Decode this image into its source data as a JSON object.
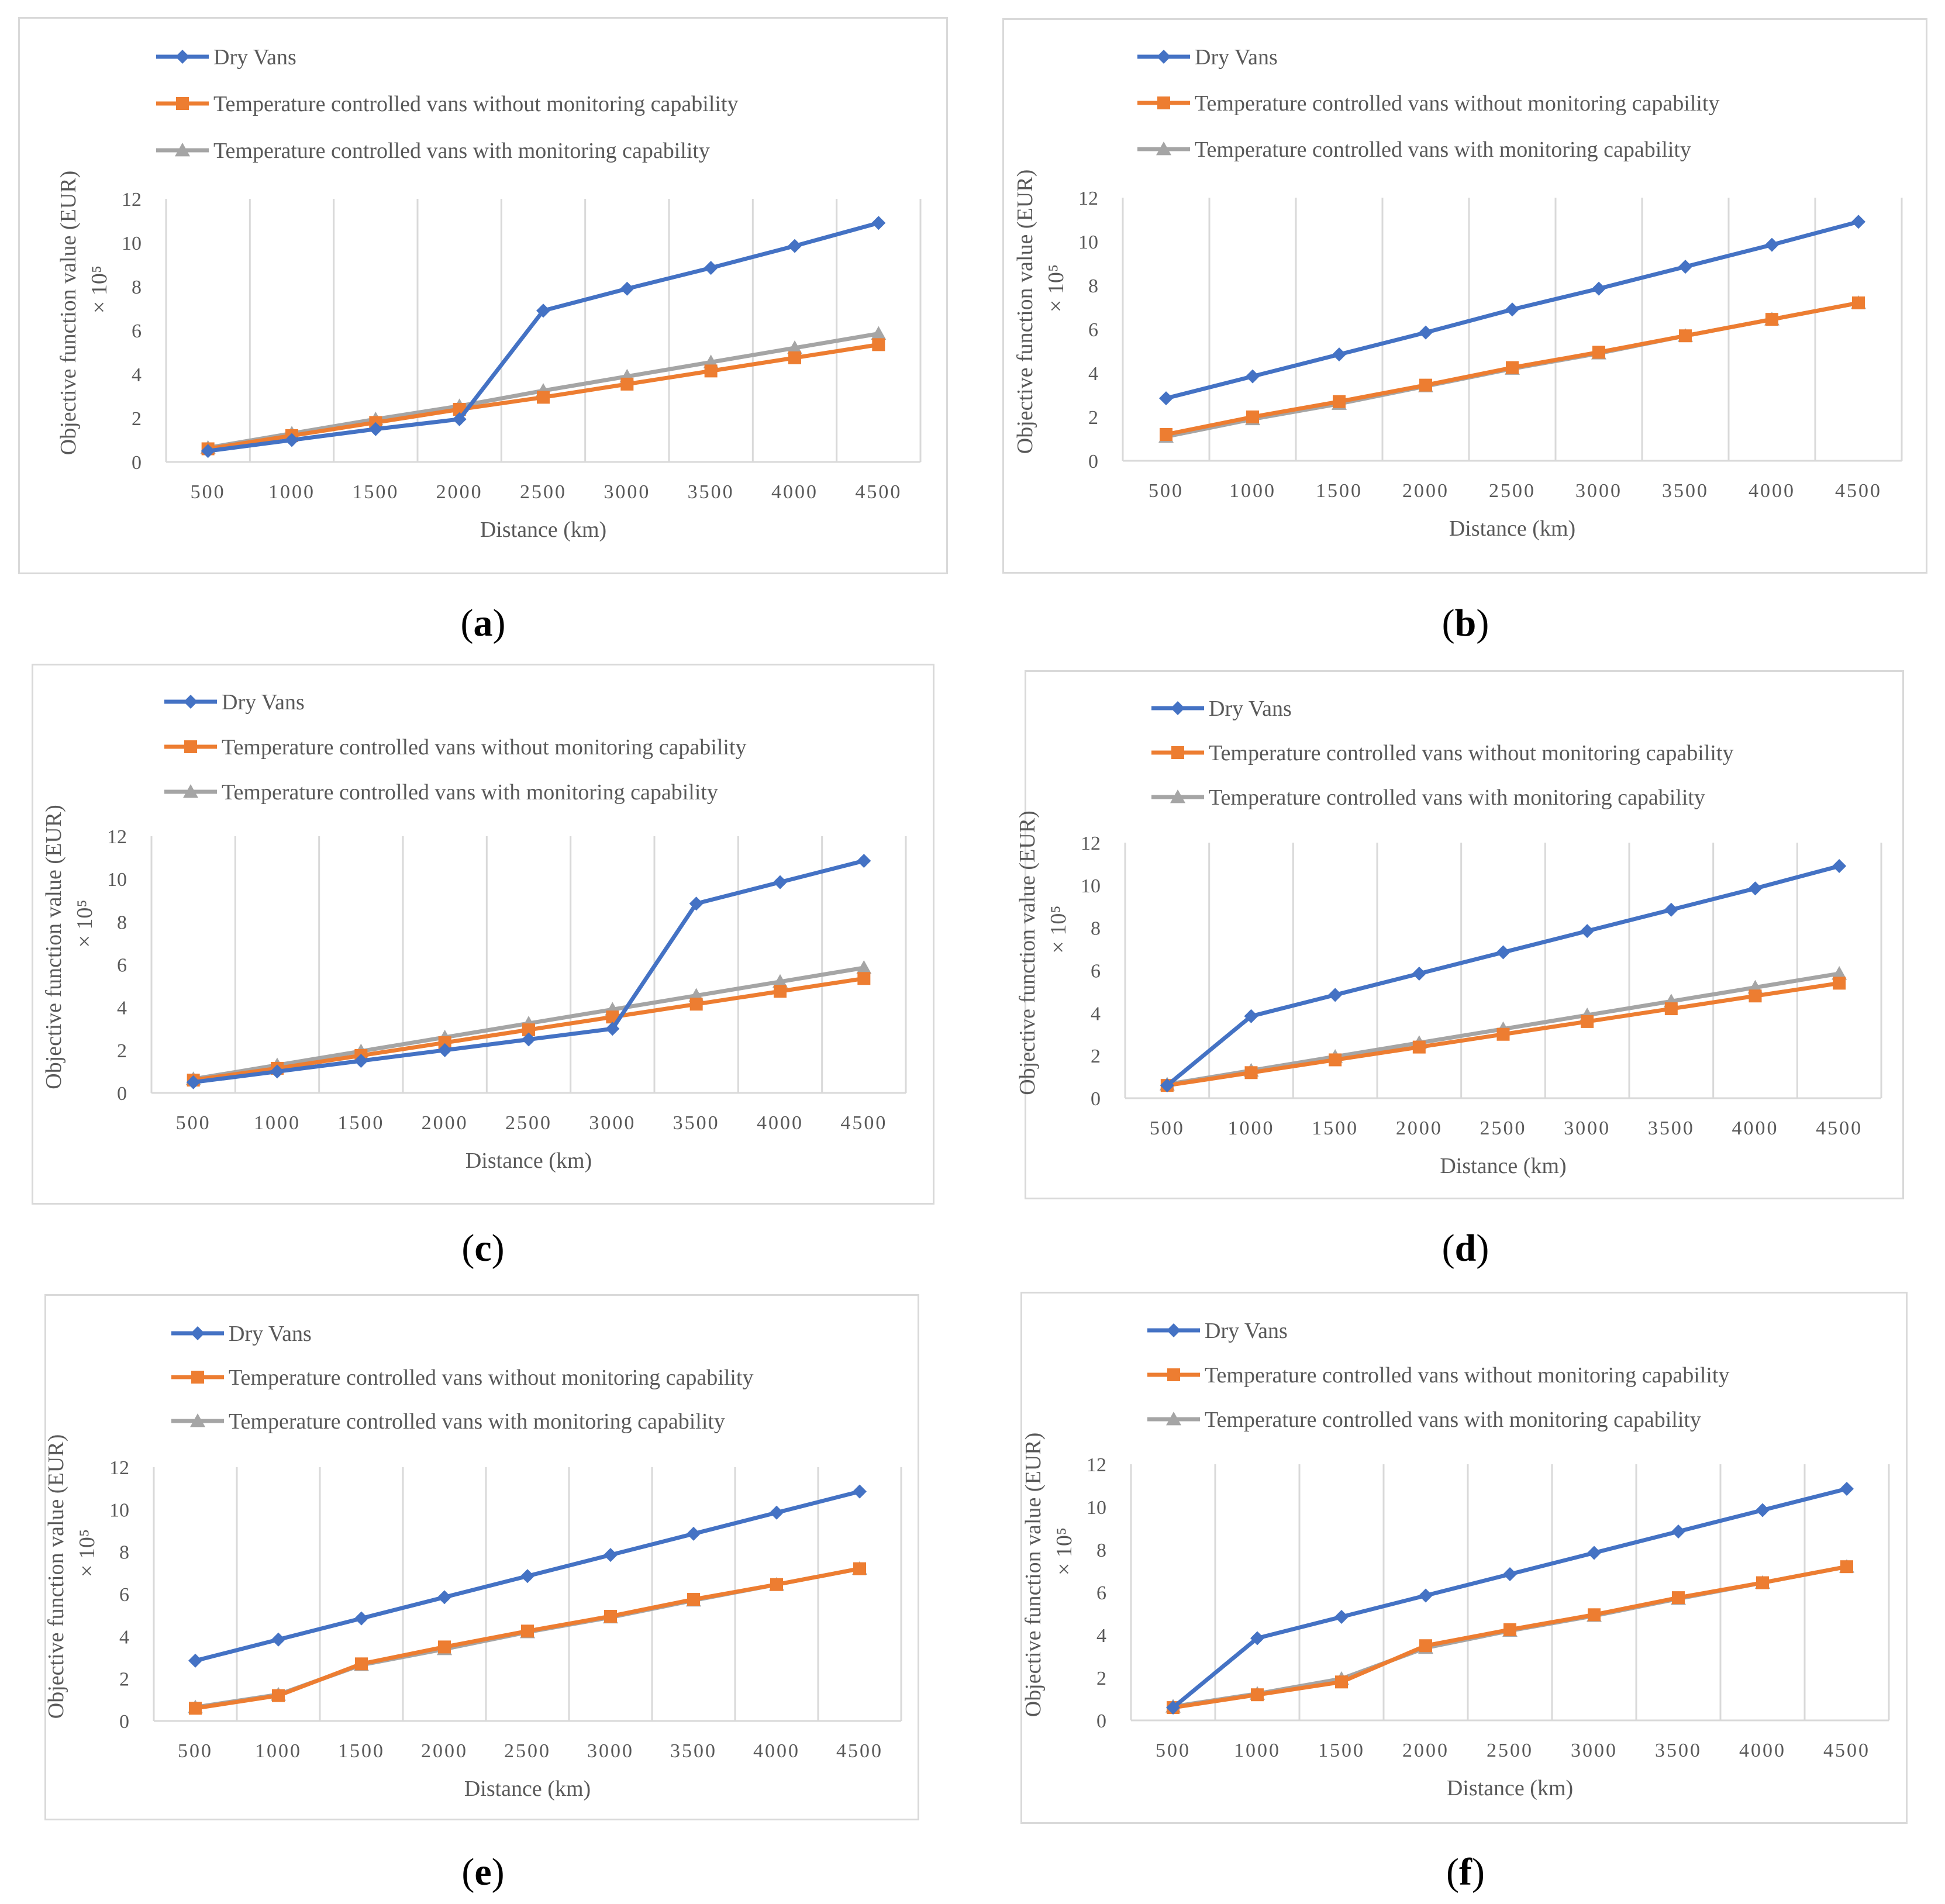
{
  "captions": [
    "a",
    "b",
    "c",
    "d",
    "e",
    "f"
  ],
  "colors": {
    "dry": "#4472C4",
    "tc_without": "#ED7D31",
    "tc_with": "#A5A5A5",
    "grid": "#d9d9d9",
    "text": "#595959"
  },
  "chart_data": [
    {
      "type": "line",
      "xlabel": "Distance (km)",
      "ylabel": "Objective function value (EUR)",
      "yunit": "× 10⁵",
      "x": [
        500,
        1000,
        1500,
        2000,
        2500,
        3000,
        3500,
        4000,
        4500
      ],
      "yticks": [
        0,
        2,
        4,
        6,
        8,
        10,
        12
      ],
      "ylim": [
        0,
        12
      ],
      "grid": "vertical",
      "legend": "top",
      "series": [
        {
          "name": "Dry Vans",
          "marker": "diamond",
          "values": [
            0.5,
            1.0,
            1.5,
            1.95,
            6.9,
            7.9,
            8.85,
            9.85,
            10.9
          ]
        },
        {
          "name": "Temperature controlled vans without monitoring capability",
          "marker": "square",
          "values": [
            0.6,
            1.2,
            1.8,
            2.4,
            2.95,
            3.55,
            4.15,
            4.75,
            5.35
          ]
        },
        {
          "name": "Temperature controlled vans with monitoring capability",
          "marker": "triangle",
          "values": [
            0.65,
            1.3,
            1.95,
            2.55,
            3.25,
            3.9,
            4.55,
            5.2,
            5.85
          ]
        }
      ]
    },
    {
      "type": "line",
      "xlabel": "Distance (km)",
      "ylabel": "Objective function value (EUR)",
      "yunit": "× 10⁵",
      "x": [
        500,
        1000,
        1500,
        2000,
        2500,
        3000,
        3500,
        4000,
        4500
      ],
      "yticks": [
        0,
        2,
        4,
        6,
        8,
        10,
        12
      ],
      "ylim": [
        0,
        12
      ],
      "grid": "vertical",
      "legend": "top",
      "series": [
        {
          "name": "Dry Vans",
          "marker": "diamond",
          "values": [
            2.85,
            3.85,
            4.85,
            5.85,
            6.9,
            7.85,
            8.85,
            9.85,
            10.9
          ]
        },
        {
          "name": "Temperature controlled vans without monitoring capability",
          "marker": "square",
          "values": [
            1.2,
            2.0,
            2.7,
            3.45,
            4.25,
            4.95,
            5.7,
            6.45,
            7.2
          ]
        },
        {
          "name": "Temperature controlled vans with monitoring capability",
          "marker": "triangle",
          "values": [
            1.1,
            1.9,
            2.6,
            3.4,
            4.2,
            4.9,
            5.7,
            6.45,
            7.2
          ]
        }
      ]
    },
    {
      "type": "line",
      "xlabel": "Distance (km)",
      "ylabel": "Objective function value (EUR)",
      "yunit": "× 10⁵",
      "x": [
        500,
        1000,
        1500,
        2000,
        2500,
        3000,
        3500,
        4000,
        4500
      ],
      "yticks": [
        0,
        2,
        4,
        6,
        8,
        10,
        12
      ],
      "ylim": [
        0,
        12
      ],
      "grid": "vertical",
      "legend": "top",
      "series": [
        {
          "name": "Dry Vans",
          "marker": "diamond",
          "values": [
            0.5,
            1.0,
            1.5,
            2.0,
            2.5,
            3.0,
            8.85,
            9.85,
            10.85
          ]
        },
        {
          "name": "Temperature controlled vans without monitoring capability",
          "marker": "square",
          "values": [
            0.6,
            1.15,
            1.75,
            2.35,
            2.95,
            3.55,
            4.15,
            4.75,
            5.35
          ]
        },
        {
          "name": "Temperature controlled vans with monitoring capability",
          "marker": "triangle",
          "values": [
            0.65,
            1.3,
            1.95,
            2.6,
            3.25,
            3.9,
            4.55,
            5.2,
            5.85
          ]
        }
      ]
    },
    {
      "type": "line",
      "xlabel": "Distance (km)",
      "ylabel": "Objective function value (EUR)",
      "yunit": "× 10⁵",
      "x": [
        500,
        1000,
        1500,
        2000,
        2500,
        3000,
        3500,
        4000,
        4500
      ],
      "yticks": [
        0,
        2,
        4,
        6,
        8,
        10,
        12
      ],
      "ylim": [
        0,
        12
      ],
      "grid": "vertical",
      "legend": "top",
      "series": [
        {
          "name": "Dry Vans",
          "marker": "diamond",
          "values": [
            0.6,
            3.85,
            4.85,
            5.85,
            6.85,
            7.85,
            8.85,
            9.85,
            10.9
          ]
        },
        {
          "name": "Temperature controlled vans without monitoring capability",
          "marker": "square",
          "values": [
            0.6,
            1.2,
            1.8,
            2.4,
            3.0,
            3.6,
            4.2,
            4.8,
            5.4
          ]
        },
        {
          "name": "Temperature controlled vans with monitoring capability",
          "marker": "triangle",
          "values": [
            0.65,
            1.3,
            1.95,
            2.6,
            3.25,
            3.9,
            4.55,
            5.2,
            5.85
          ]
        }
      ]
    },
    {
      "type": "line",
      "xlabel": "Distance (km)",
      "ylabel": "Objective function value (EUR)",
      "yunit": "× 10⁵",
      "x": [
        500,
        1000,
        1500,
        2000,
        2500,
        3000,
        3500,
        4000,
        4500
      ],
      "yticks": [
        0,
        2,
        4,
        6,
        8,
        10,
        12
      ],
      "ylim": [
        0,
        12
      ],
      "grid": "vertical",
      "legend": "top",
      "series": [
        {
          "name": "Dry Vans",
          "marker": "diamond",
          "values": [
            2.85,
            3.85,
            4.85,
            5.85,
            6.85,
            7.85,
            8.85,
            9.85,
            10.85
          ]
        },
        {
          "name": "Temperature controlled vans without monitoring capability",
          "marker": "square",
          "values": [
            0.6,
            1.2,
            2.7,
            3.5,
            4.25,
            4.95,
            5.75,
            6.45,
            7.2
          ]
        },
        {
          "name": "Temperature controlled vans with monitoring capability",
          "marker": "triangle",
          "values": [
            0.65,
            1.25,
            2.65,
            3.4,
            4.2,
            4.9,
            5.7,
            6.45,
            7.2
          ]
        }
      ]
    },
    {
      "type": "line",
      "xlabel": "Distance (km)",
      "ylabel": "Objective function value (EUR)",
      "yunit": "× 10⁵",
      "x": [
        500,
        1000,
        1500,
        2000,
        2500,
        3000,
        3500,
        4000,
        4500
      ],
      "yticks": [
        0,
        2,
        4,
        6,
        8,
        10,
        12
      ],
      "ylim": [
        0,
        12
      ],
      "grid": "vertical",
      "legend": "top",
      "series": [
        {
          "name": "Dry Vans",
          "marker": "diamond",
          "values": [
            0.6,
            3.85,
            4.85,
            5.85,
            6.85,
            7.85,
            8.85,
            9.85,
            10.85
          ]
        },
        {
          "name": "Temperature controlled vans without monitoring capability",
          "marker": "square",
          "values": [
            0.6,
            1.2,
            1.8,
            3.5,
            4.25,
            4.95,
            5.75,
            6.45,
            7.2
          ]
        },
        {
          "name": "Temperature controlled vans with monitoring capability",
          "marker": "triangle",
          "values": [
            0.65,
            1.25,
            1.95,
            3.4,
            4.2,
            4.9,
            5.7,
            6.45,
            7.2
          ]
        }
      ]
    }
  ]
}
